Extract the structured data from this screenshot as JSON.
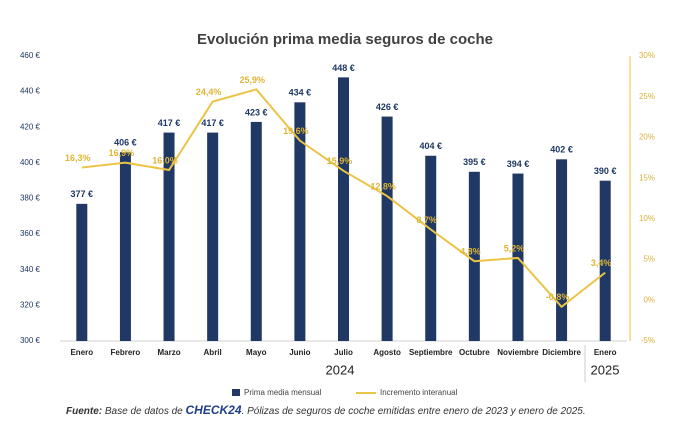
{
  "chart_data": {
    "type": "bar_line",
    "title": "Evolución prima media seguros de coche",
    "categories": [
      "Enero",
      "Febrero",
      "Marzo",
      "Abril",
      "Mayo",
      "Junio",
      "Julio",
      "Agosto",
      "Septiembre",
      "Octubre",
      "Noviembre",
      "Diciembre",
      "Enero"
    ],
    "series": [
      {
        "name": "Prima media mensual",
        "type": "bar",
        "color": "#1f3864",
        "values": [
          377,
          406,
          417,
          417,
          423,
          434,
          448,
          426,
          404,
          395,
          394,
          402,
          390
        ],
        "value_labels": [
          "377 €",
          "406 €",
          "417 €",
          "417 €",
          "423 €",
          "434 €",
          "448 €",
          "426 €",
          "404 €",
          "395 €",
          "394 €",
          "402 €",
          "390 €"
        ]
      },
      {
        "name": "Incremento interanual",
        "type": "line",
        "axis": "y2",
        "color": "#ebc444",
        "values": [
          16.3,
          16.9,
          16.0,
          24.4,
          25.9,
          19.6,
          15.9,
          12.8,
          8.7,
          4.8,
          5.2,
          -0.8,
          3.4
        ],
        "value_labels": [
          "16,3%",
          "16,9%",
          "16,0%",
          "24,4%",
          "25,9%",
          "19,6%",
          "15,9%",
          "12,8%",
          "8,7%",
          "4,8%",
          "5,2%",
          "-0,8%",
          "3,4%"
        ]
      }
    ],
    "ylim": [
      300,
      460
    ],
    "yticks": [
      {
        "value": 300,
        "label": "300 €"
      },
      {
        "value": 320,
        "label": "320 €"
      },
      {
        "value": 340,
        "label": "340 €"
      },
      {
        "value": 360,
        "label": "360 €"
      },
      {
        "value": 380,
        "label": "380 €"
      },
      {
        "value": 400,
        "label": "400 €"
      },
      {
        "value": 420,
        "label": "420 €"
      },
      {
        "value": 440,
        "label": "440 €"
      },
      {
        "value": 460,
        "label": "460 €"
      }
    ],
    "y2lim": [
      -5,
      30
    ],
    "y2ticks": [
      {
        "value": -5,
        "label": "-5%"
      },
      {
        "value": 0,
        "label": "0%"
      },
      {
        "value": 5,
        "label": "5%"
      },
      {
        "value": 10,
        "label": "10%"
      },
      {
        "value": 15,
        "label": "15%"
      },
      {
        "value": 20,
        "label": "20%"
      },
      {
        "value": 25,
        "label": "25%"
      },
      {
        "value": 30,
        "label": "30%"
      }
    ],
    "year_labels": [
      "2024",
      "2025"
    ],
    "legend": "bottom",
    "source": {
      "label": "Fuente:",
      "text": "Base de datos de",
      "brand": "CHECK24",
      "rest": ". Pólizas de seguros de coche emitidas entre enero de 2023 y enero de 2025."
    }
  }
}
